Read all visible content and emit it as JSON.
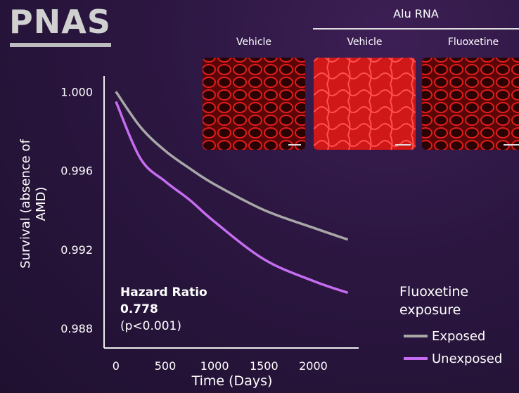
{
  "logo": "PNAS",
  "inset": {
    "group_label": "Alu RNA",
    "panels": [
      "Vehicle",
      "Vehicle",
      "Fluoxetine"
    ]
  },
  "chart_data": {
    "type": "line",
    "x_label": "Time (Days)",
    "y_label": "Survival (absence of AMD)",
    "x": [
      0,
      250,
      500,
      750,
      1000,
      1500,
      2000,
      2350
    ],
    "series": [
      {
        "name": "Exposed",
        "color": "#a8a8a8",
        "values": [
          1.0,
          0.9982,
          0.997,
          0.9961,
          0.9953,
          0.994,
          0.9931,
          0.9925
        ]
      },
      {
        "name": "Unexposed",
        "color": "#c66cf0",
        "values": [
          0.9995,
          0.9966,
          0.99545,
          0.9945,
          0.9934,
          0.9915,
          0.9904,
          0.9898
        ]
      }
    ],
    "xlim": [
      -120,
      2460
    ],
    "ylim": [
      0.987,
      1.0008
    ],
    "xticks": [
      0,
      500,
      1000,
      1500,
      2000
    ],
    "yticks": [
      {
        "value": 1,
        "label": "1.000"
      },
      0.996,
      0.992,
      0.988
    ],
    "legend_title": "Fluoxetine exposure",
    "legend_position": "lower right",
    "annotation": {
      "title": "Hazard Ratio",
      "value": 0.778,
      "note": "(p<0.001)"
    }
  }
}
